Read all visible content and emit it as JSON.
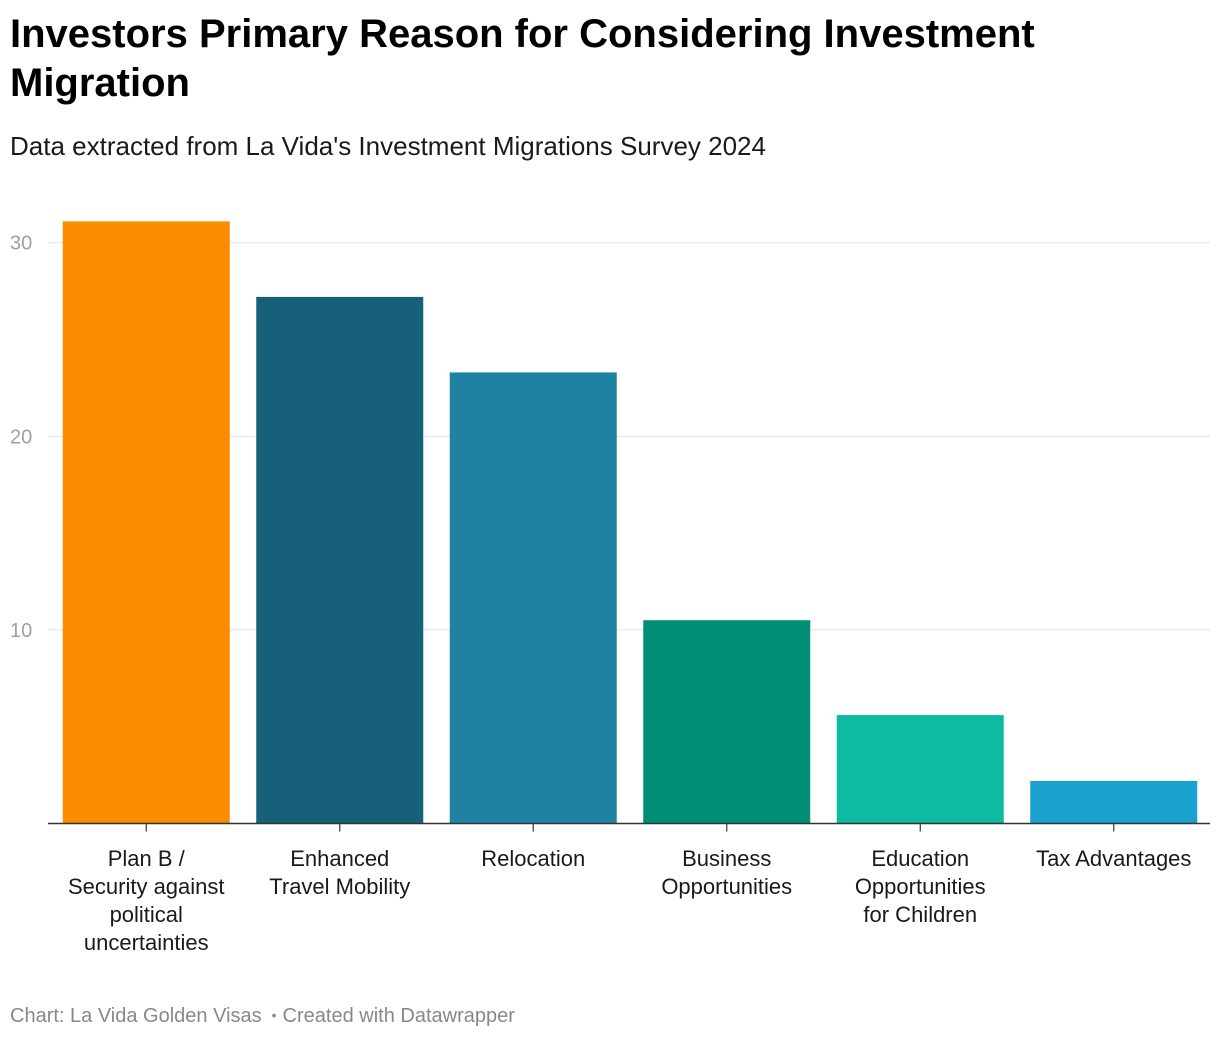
{
  "chart_data": {
    "type": "bar",
    "title": "Investors Primary Reason for Considering Investment Migration",
    "subtitle": "Data extracted from La Vida's Investment Migrations Survey 2024",
    "categories": [
      [
        "Plan B /",
        "Security against",
        "political",
        "uncertainties"
      ],
      [
        "Enhanced",
        "Travel Mobility"
      ],
      [
        "Relocation"
      ],
      [
        "Business",
        "Opportunities"
      ],
      [
        "Education",
        "Opportunities",
        "for Children"
      ],
      [
        "Tax Advantages"
      ]
    ],
    "values": [
      31.1,
      27.2,
      23.3,
      10.5,
      5.6,
      2.2
    ],
    "colors": [
      "#fa8c00",
      "#17607a",
      "#1f82a3",
      "#008f74",
      "#0cbba1",
      "#1aa1cd"
    ],
    "ylim": [
      0,
      30
    ],
    "yticks": [
      10,
      20,
      30
    ],
    "xlabel": "",
    "ylabel": "",
    "grid": true,
    "legend": "none"
  },
  "footer": {
    "source": "Chart: La Vida Golden Visas",
    "separator": "•",
    "credit": "Created with Datawrapper"
  }
}
